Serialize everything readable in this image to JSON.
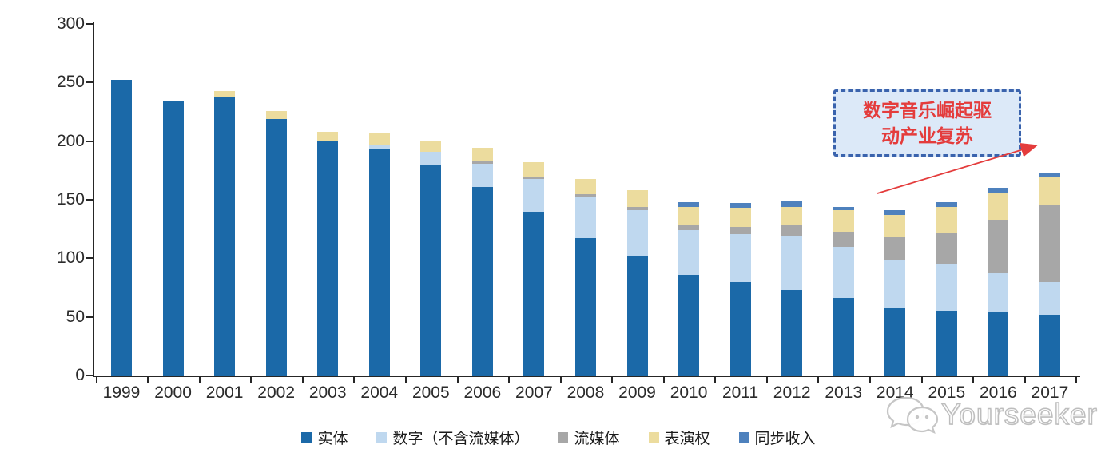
{
  "chart_data": {
    "type": "bar",
    "subtype": "stacked-vertical",
    "title": "",
    "xlabel": "",
    "ylabel": "",
    "ylim": [
      0,
      300
    ],
    "yticks": [
      "0",
      "50",
      "100",
      "150",
      "200",
      "250",
      "300"
    ],
    "grid": false,
    "legend_position": "bottom",
    "categories": [
      "1999",
      "2000",
      "2001",
      "2002",
      "2003",
      "2004",
      "2005",
      "2006",
      "2007",
      "2008",
      "2009",
      "2010",
      "2011",
      "2012",
      "2013",
      "2014",
      "2015",
      "2016",
      "2017"
    ],
    "series": [
      {
        "name": "实体",
        "color": "#1B69A8",
        "values": [
          252,
          234,
          238,
          219,
          200,
          193,
          180,
          161,
          140,
          117,
          102,
          86,
          80,
          73,
          66,
          58,
          55,
          54,
          52
        ]
      },
      {
        "name": "数字（不含流媒体）",
        "color": "#BFD8EF",
        "values": [
          0,
          0,
          0,
          0,
          0,
          4,
          11,
          20,
          28,
          35,
          39,
          38,
          41,
          46,
          44,
          41,
          40,
          33,
          28
        ]
      },
      {
        "name": "流媒体",
        "color": "#A7A7A7",
        "values": [
          0,
          0,
          0,
          0,
          0,
          0,
          0,
          2,
          2,
          3,
          3,
          5,
          6,
          9,
          13,
          19,
          27,
          46,
          66
        ]
      },
      {
        "name": "表演权",
        "color": "#ECDC9E",
        "values": [
          0,
          0,
          5,
          7,
          8,
          10,
          9,
          11,
          12,
          13,
          14,
          15,
          16,
          16,
          18,
          19,
          22,
          23,
          24
        ]
      },
      {
        "name": "同步收入",
        "color": "#4E81BD",
        "values": [
          0,
          0,
          0,
          0,
          0,
          0,
          0,
          0,
          0,
          0,
          0,
          4,
          4,
          5,
          3,
          4,
          4,
          4,
          3
        ]
      }
    ]
  },
  "annotation": {
    "line1": "数字音乐崛起驱",
    "line2": "动产业复苏",
    "text_color": "#E43C3C",
    "box_fill": "#DCE9F8",
    "box_border": "#3A63AD",
    "arrow_color": "#E43C3C"
  },
  "watermark": {
    "text": "Yourseeker",
    "icon": "wechat-chat-bubbles-icon",
    "color": "#bdbdbd"
  },
  "axis": {
    "line_color": "#262626",
    "label_color": "#2b2b2b"
  }
}
